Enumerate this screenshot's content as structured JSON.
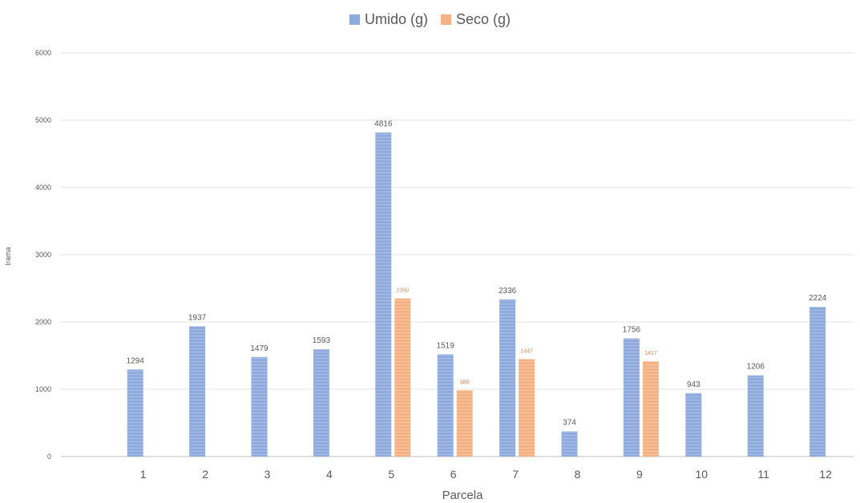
{
  "chart_data": {
    "type": "bar",
    "xlabel": "Parcela",
    "ylabel": "Irama",
    "ylim": [
      0,
      6000
    ],
    "yticks": [
      0,
      1000,
      2000,
      3000,
      4000,
      5000,
      6000
    ],
    "grid": true,
    "legend_position": "top",
    "categories": [
      "1",
      "2",
      "3",
      "4",
      "5",
      "6",
      "7",
      "8",
      "9",
      "10",
      "11",
      "12"
    ],
    "series": [
      {
        "name": "Umido (g)",
        "color": "#8faadc",
        "values": [
          1294,
          1937,
          1479,
          1593,
          4816,
          1519,
          2336,
          374,
          1756,
          943,
          1206,
          2224
        ],
        "labels": [
          "1294",
          "1937",
          "1479",
          "1593",
          "4816",
          "1519",
          "2336",
          "374",
          "1756",
          "943",
          "1206",
          "2224"
        ]
      },
      {
        "name": "Seco (g)",
        "color": "#f4b183",
        "values": [
          null,
          null,
          null,
          null,
          2350,
          985,
          1447,
          null,
          1417,
          null,
          null,
          null
        ],
        "labels": [
          "",
          "",
          "",
          "",
          "2350",
          "985",
          "1447",
          "",
          "1417",
          "",
          "",
          ""
        ]
      }
    ]
  }
}
